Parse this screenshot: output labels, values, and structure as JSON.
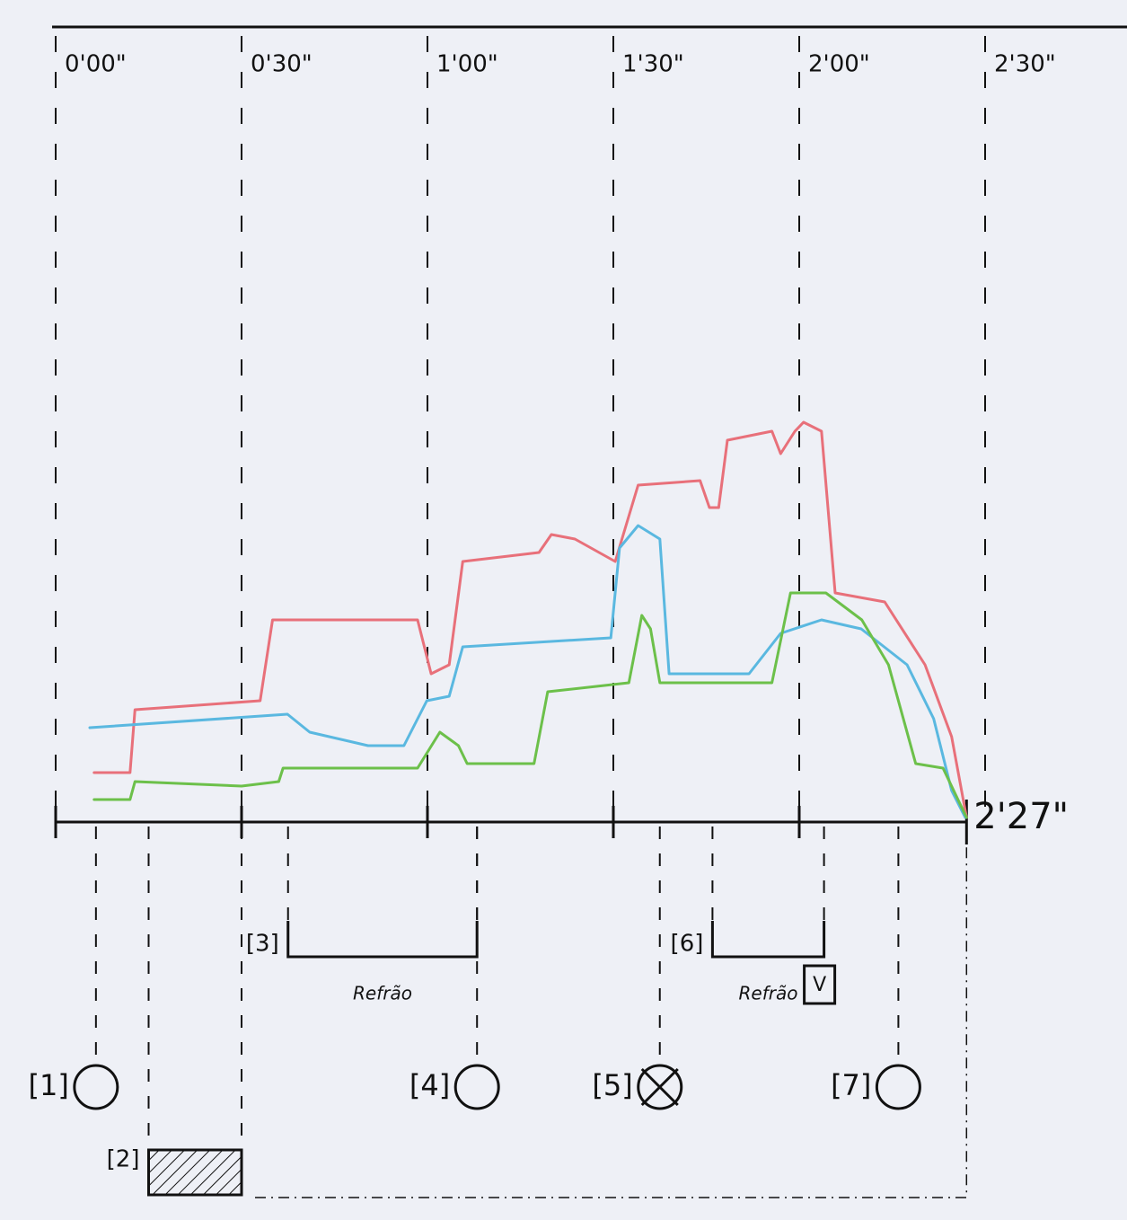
{
  "chart_data": {
    "type": "line",
    "xlim": [
      0,
      150
    ],
    "ylim": [
      0,
      100
    ],
    "xticks": [
      {
        "value": 0,
        "label": "0'00\""
      },
      {
        "value": 30,
        "label": "0'30\""
      },
      {
        "value": 60,
        "label": "1'00\""
      },
      {
        "value": 90,
        "label": "1'30\""
      },
      {
        "value": 120,
        "label": "2'00\""
      },
      {
        "value": 150,
        "label": "2'30\""
      }
    ],
    "x_end": {
      "value": 147,
      "label": "2'27\""
    },
    "series": [
      {
        "color": "#e8707a",
        "x": [
          6.2,
          12,
          12.8,
          33,
          35,
          58.4,
          60.6,
          63.5,
          65.7,
          78,
          80,
          83.8,
          90.3,
          94,
          104,
          105.5,
          107,
          108.4,
          115.6,
          117,
          119.3,
          120.7,
          123.6,
          125.8,
          133.8,
          140.3,
          144.6,
          147
        ],
        "values": [
          11,
          11,
          25,
          27,
          45,
          45,
          33,
          35,
          58,
          60,
          64,
          63,
          58,
          75,
          76,
          70,
          70,
          85,
          87,
          82,
          87,
          89,
          87,
          51,
          49,
          35,
          19,
          1
        ]
      },
      {
        "color": "#5ab8e0",
        "x": [
          5.5,
          37.4,
          41,
          50.4,
          56.2,
          59.9,
          63.5,
          65.7,
          89.6,
          91,
          94,
          97.5,
          99,
          111.9,
          117,
          123.6,
          130,
          137.4,
          141.7,
          144.6,
          146.8
        ],
        "values": [
          21,
          24,
          20,
          17,
          17,
          27,
          28,
          39,
          41,
          61,
          66,
          63,
          33,
          33,
          42,
          45,
          43,
          35,
          23,
          7,
          1
        ]
      },
      {
        "color": "#6cc04a",
        "x": [
          6.2,
          12,
          12.8,
          30,
          36,
          36.7,
          58.4,
          62,
          65,
          66.4,
          77.2,
          79.4,
          92.5,
          94.6,
          96,
          97.5,
          115.6,
          118.6,
          124.3,
          130.1,
          134.4,
          138.8,
          143.2,
          147
        ],
        "values": [
          5,
          5,
          9,
          8,
          9,
          12,
          12,
          20,
          17,
          13,
          13,
          29,
          31,
          46,
          43,
          31,
          31,
          51,
          51,
          45,
          35,
          13,
          12,
          1
        ]
      }
    ],
    "annotations": [
      {
        "label": "[1]",
        "x": 6.5,
        "marker": "circle"
      },
      {
        "label": "[2]",
        "x": [
          15,
          30
        ],
        "marker": "hatched"
      },
      {
        "label": "[3]",
        "x": [
          37.5,
          68
        ],
        "marker": "bracket",
        "text": "Refrão"
      },
      {
        "label": "[4]",
        "x": 68,
        "marker": "circle"
      },
      {
        "label": "[5]",
        "x": 97.5,
        "marker": "crossed-circle"
      },
      {
        "label": "[6]",
        "x": [
          106,
          124
        ],
        "marker": "bracket",
        "text": "Refrão",
        "box": "V"
      },
      {
        "label": "[7]",
        "x": 136,
        "marker": "circle"
      }
    ]
  }
}
